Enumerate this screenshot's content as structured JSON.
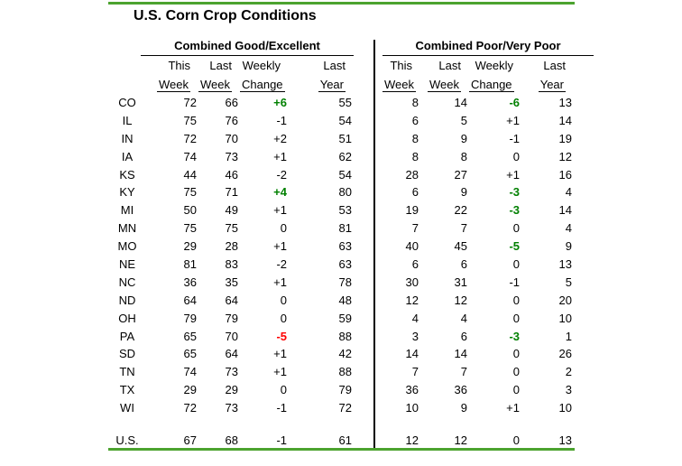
{
  "title": "U.S. Corn Crop Conditions",
  "colors": {
    "rule_green": "#4CA32F",
    "positive_change_green": "#008000",
    "negative_change_red": "#FF0000",
    "text": "#000000"
  },
  "sections": [
    {
      "title": "Combined Good/Excellent",
      "col_headers": [
        {
          "top": "This",
          "bottom": "Week"
        },
        {
          "top": "Last",
          "bottom": "Week"
        },
        {
          "top": "Weekly",
          "bottom": "Change"
        },
        {
          "top": "Last",
          "bottom": "Year"
        }
      ]
    },
    {
      "title": "Combined Poor/Very Poor",
      "col_headers": [
        {
          "top": "This",
          "bottom": "Week"
        },
        {
          "top": "Last",
          "bottom": "Week"
        },
        {
          "top": "Weekly",
          "bottom": "Change"
        },
        {
          "top": "Last",
          "bottom": "Year"
        }
      ]
    }
  ],
  "rows": [
    {
      "state": "CO",
      "good": {
        "this_week": "72",
        "last_week": "66",
        "change": "+6",
        "change_color": "green",
        "last_year": "55"
      },
      "poor": {
        "this_week": "8",
        "last_week": "14",
        "change": "-6",
        "change_color": "green",
        "last_year": "13"
      }
    },
    {
      "state": "IL",
      "good": {
        "this_week": "75",
        "last_week": "76",
        "change": "-1",
        "change_color": "none",
        "last_year": "54"
      },
      "poor": {
        "this_week": "6",
        "last_week": "5",
        "change": "+1",
        "change_color": "none",
        "last_year": "14"
      }
    },
    {
      "state": "IN",
      "good": {
        "this_week": "72",
        "last_week": "70",
        "change": "+2",
        "change_color": "none",
        "last_year": "51"
      },
      "poor": {
        "this_week": "8",
        "last_week": "9",
        "change": "-1",
        "change_color": "none",
        "last_year": "19"
      }
    },
    {
      "state": "IA",
      "good": {
        "this_week": "74",
        "last_week": "73",
        "change": "+1",
        "change_color": "none",
        "last_year": "62"
      },
      "poor": {
        "this_week": "8",
        "last_week": "8",
        "change": "0",
        "change_color": "none",
        "last_year": "12"
      }
    },
    {
      "state": "KS",
      "good": {
        "this_week": "44",
        "last_week": "46",
        "change": "-2",
        "change_color": "none",
        "last_year": "54"
      },
      "poor": {
        "this_week": "28",
        "last_week": "27",
        "change": "+1",
        "change_color": "none",
        "last_year": "16"
      }
    },
    {
      "state": "KY",
      "good": {
        "this_week": "75",
        "last_week": "71",
        "change": "+4",
        "change_color": "green",
        "last_year": "80"
      },
      "poor": {
        "this_week": "6",
        "last_week": "9",
        "change": "-3",
        "change_color": "green",
        "last_year": "4"
      }
    },
    {
      "state": "MI",
      "good": {
        "this_week": "50",
        "last_week": "49",
        "change": "+1",
        "change_color": "none",
        "last_year": "53"
      },
      "poor": {
        "this_week": "19",
        "last_week": "22",
        "change": "-3",
        "change_color": "green",
        "last_year": "14"
      }
    },
    {
      "state": "MN",
      "good": {
        "this_week": "75",
        "last_week": "75",
        "change": "0",
        "change_color": "none",
        "last_year": "81"
      },
      "poor": {
        "this_week": "7",
        "last_week": "7",
        "change": "0",
        "change_color": "none",
        "last_year": "4"
      }
    },
    {
      "state": "MO",
      "good": {
        "this_week": "29",
        "last_week": "28",
        "change": "+1",
        "change_color": "none",
        "last_year": "63"
      },
      "poor": {
        "this_week": "40",
        "last_week": "45",
        "change": "-5",
        "change_color": "green",
        "last_year": "9"
      }
    },
    {
      "state": "NE",
      "good": {
        "this_week": "81",
        "last_week": "83",
        "change": "-2",
        "change_color": "none",
        "last_year": "63"
      },
      "poor": {
        "this_week": "6",
        "last_week": "6",
        "change": "0",
        "change_color": "none",
        "last_year": "13"
      }
    },
    {
      "state": "NC",
      "good": {
        "this_week": "36",
        "last_week": "35",
        "change": "+1",
        "change_color": "none",
        "last_year": "78"
      },
      "poor": {
        "this_week": "30",
        "last_week": "31",
        "change": "-1",
        "change_color": "none",
        "last_year": "5"
      }
    },
    {
      "state": "ND",
      "good": {
        "this_week": "64",
        "last_week": "64",
        "change": "0",
        "change_color": "none",
        "last_year": "48"
      },
      "poor": {
        "this_week": "12",
        "last_week": "12",
        "change": "0",
        "change_color": "none",
        "last_year": "20"
      }
    },
    {
      "state": "OH",
      "good": {
        "this_week": "79",
        "last_week": "79",
        "change": "0",
        "change_color": "none",
        "last_year": "59"
      },
      "poor": {
        "this_week": "4",
        "last_week": "4",
        "change": "0",
        "change_color": "none",
        "last_year": "10"
      }
    },
    {
      "state": "PA",
      "good": {
        "this_week": "65",
        "last_week": "70",
        "change": "-5",
        "change_color": "red",
        "last_year": "88"
      },
      "poor": {
        "this_week": "3",
        "last_week": "6",
        "change": "-3",
        "change_color": "green",
        "last_year": "1"
      }
    },
    {
      "state": "SD",
      "good": {
        "this_week": "65",
        "last_week": "64",
        "change": "+1",
        "change_color": "none",
        "last_year": "42"
      },
      "poor": {
        "this_week": "14",
        "last_week": "14",
        "change": "0",
        "change_color": "none",
        "last_year": "26"
      }
    },
    {
      "state": "TN",
      "good": {
        "this_week": "74",
        "last_week": "73",
        "change": "+1",
        "change_color": "none",
        "last_year": "88"
      },
      "poor": {
        "this_week": "7",
        "last_week": "7",
        "change": "0",
        "change_color": "none",
        "last_year": "2"
      }
    },
    {
      "state": "TX",
      "good": {
        "this_week": "29",
        "last_week": "29",
        "change": "0",
        "change_color": "none",
        "last_year": "79"
      },
      "poor": {
        "this_week": "36",
        "last_week": "36",
        "change": "0",
        "change_color": "none",
        "last_year": "3"
      }
    },
    {
      "state": "WI",
      "good": {
        "this_week": "72",
        "last_week": "73",
        "change": "-1",
        "change_color": "none",
        "last_year": "72"
      },
      "poor": {
        "this_week": "10",
        "last_week": "9",
        "change": "+1",
        "change_color": "none",
        "last_year": "10"
      }
    }
  ],
  "us_row": {
    "state": "U.S.",
    "good": {
      "this_week": "67",
      "last_week": "68",
      "change": "-1",
      "change_color": "none",
      "last_year": "61"
    },
    "poor": {
      "this_week": "12",
      "last_week": "12",
      "change": "0",
      "change_color": "none",
      "last_year": "13"
    }
  },
  "chart_data": {
    "type": "table",
    "title": "U.S. Corn Crop Conditions",
    "sections": [
      {
        "name": "Combined Good/Excellent",
        "columns": [
          "This Week",
          "Last Week",
          "Weekly Change",
          "Last Year"
        ]
      },
      {
        "name": "Combined Poor/Very Poor",
        "columns": [
          "This Week",
          "Last Week",
          "Weekly Change",
          "Last Year"
        ]
      }
    ],
    "states": [
      "CO",
      "IL",
      "IN",
      "IA",
      "KS",
      "KY",
      "MI",
      "MN",
      "MO",
      "NE",
      "NC",
      "ND",
      "OH",
      "PA",
      "SD",
      "TN",
      "TX",
      "WI",
      "U.S."
    ],
    "good_excellent": {
      "this_week": [
        72,
        75,
        72,
        74,
        44,
        75,
        50,
        75,
        29,
        81,
        36,
        64,
        79,
        65,
        65,
        74,
        29,
        72,
        67
      ],
      "last_week": [
        66,
        76,
        70,
        73,
        46,
        71,
        49,
        75,
        28,
        83,
        35,
        64,
        79,
        70,
        64,
        73,
        29,
        73,
        68
      ],
      "weekly_change": [
        6,
        -1,
        2,
        1,
        -2,
        4,
        1,
        0,
        1,
        -2,
        1,
        0,
        0,
        -5,
        1,
        1,
        0,
        -1,
        -1
      ],
      "last_year": [
        55,
        54,
        51,
        62,
        54,
        80,
        53,
        81,
        63,
        63,
        78,
        48,
        59,
        88,
        42,
        88,
        79,
        72,
        61
      ]
    },
    "poor_very_poor": {
      "this_week": [
        8,
        6,
        8,
        8,
        28,
        6,
        19,
        7,
        40,
        6,
        30,
        12,
        4,
        3,
        14,
        7,
        36,
        10,
        12
      ],
      "last_week": [
        14,
        5,
        9,
        8,
        27,
        9,
        22,
        7,
        45,
        6,
        31,
        12,
        4,
        6,
        14,
        7,
        36,
        9,
        12
      ],
      "weekly_change": [
        -6,
        1,
        -1,
        0,
        1,
        -3,
        -3,
        0,
        -5,
        0,
        -1,
        0,
        0,
        -3,
        0,
        0,
        0,
        1,
        0
      ],
      "last_year": [
        13,
        14,
        19,
        12,
        16,
        4,
        14,
        4,
        9,
        13,
        5,
        20,
        10,
        1,
        26,
        2,
        3,
        10,
        13
      ]
    }
  }
}
